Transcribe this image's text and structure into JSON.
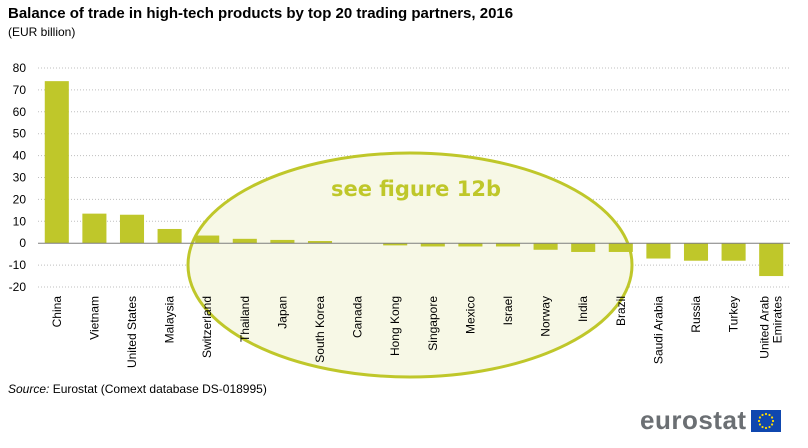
{
  "title": "Balance of trade in high-tech products by top 20 trading partners, 2016",
  "unit": "(EUR billion)",
  "source": {
    "label": "Source:",
    "text": "Eurostat (Comext database DS-018995)"
  },
  "logo_text": "eurostat",
  "annotation": "see figure 12b",
  "colors": {
    "bar": "#bfc72a",
    "annotation": "#bfc72a",
    "ellipse_fill": "#f7f8e6",
    "grid": "#bfbfbf",
    "axis": "#7f7f7f",
    "flag_blue": "#0f47af",
    "flag_star": "#ffdd00"
  },
  "chart_data": {
    "type": "bar",
    "categories": [
      "China",
      "Vietnam",
      "United States",
      "Malaysia",
      "Switzerland",
      "Thailand",
      "Japan",
      "South Korea",
      "Canada",
      "Hong Kong",
      "Singapore",
      "Mexico",
      "Israel",
      "Norway",
      "India",
      "Brazil",
      "Saudi Arabia",
      "Russia",
      "Turkey",
      "United Arab Emirates"
    ],
    "values": [
      74,
      13.5,
      13,
      6.5,
      3.5,
      2,
      1.5,
      1,
      0,
      -1,
      -1.5,
      -1.5,
      -1.5,
      -3,
      -4,
      -4,
      -7,
      -8,
      -8,
      -15
    ],
    "title": "Balance of trade in high-tech products by top 20 trading partners, 2016",
    "ylabel": "(EUR billion)",
    "ylim": [
      -20,
      80
    ],
    "yticks": [
      80,
      70,
      60,
      50,
      40,
      30,
      20,
      10,
      0,
      -10,
      -20
    ],
    "grid": true,
    "legend": "none"
  }
}
